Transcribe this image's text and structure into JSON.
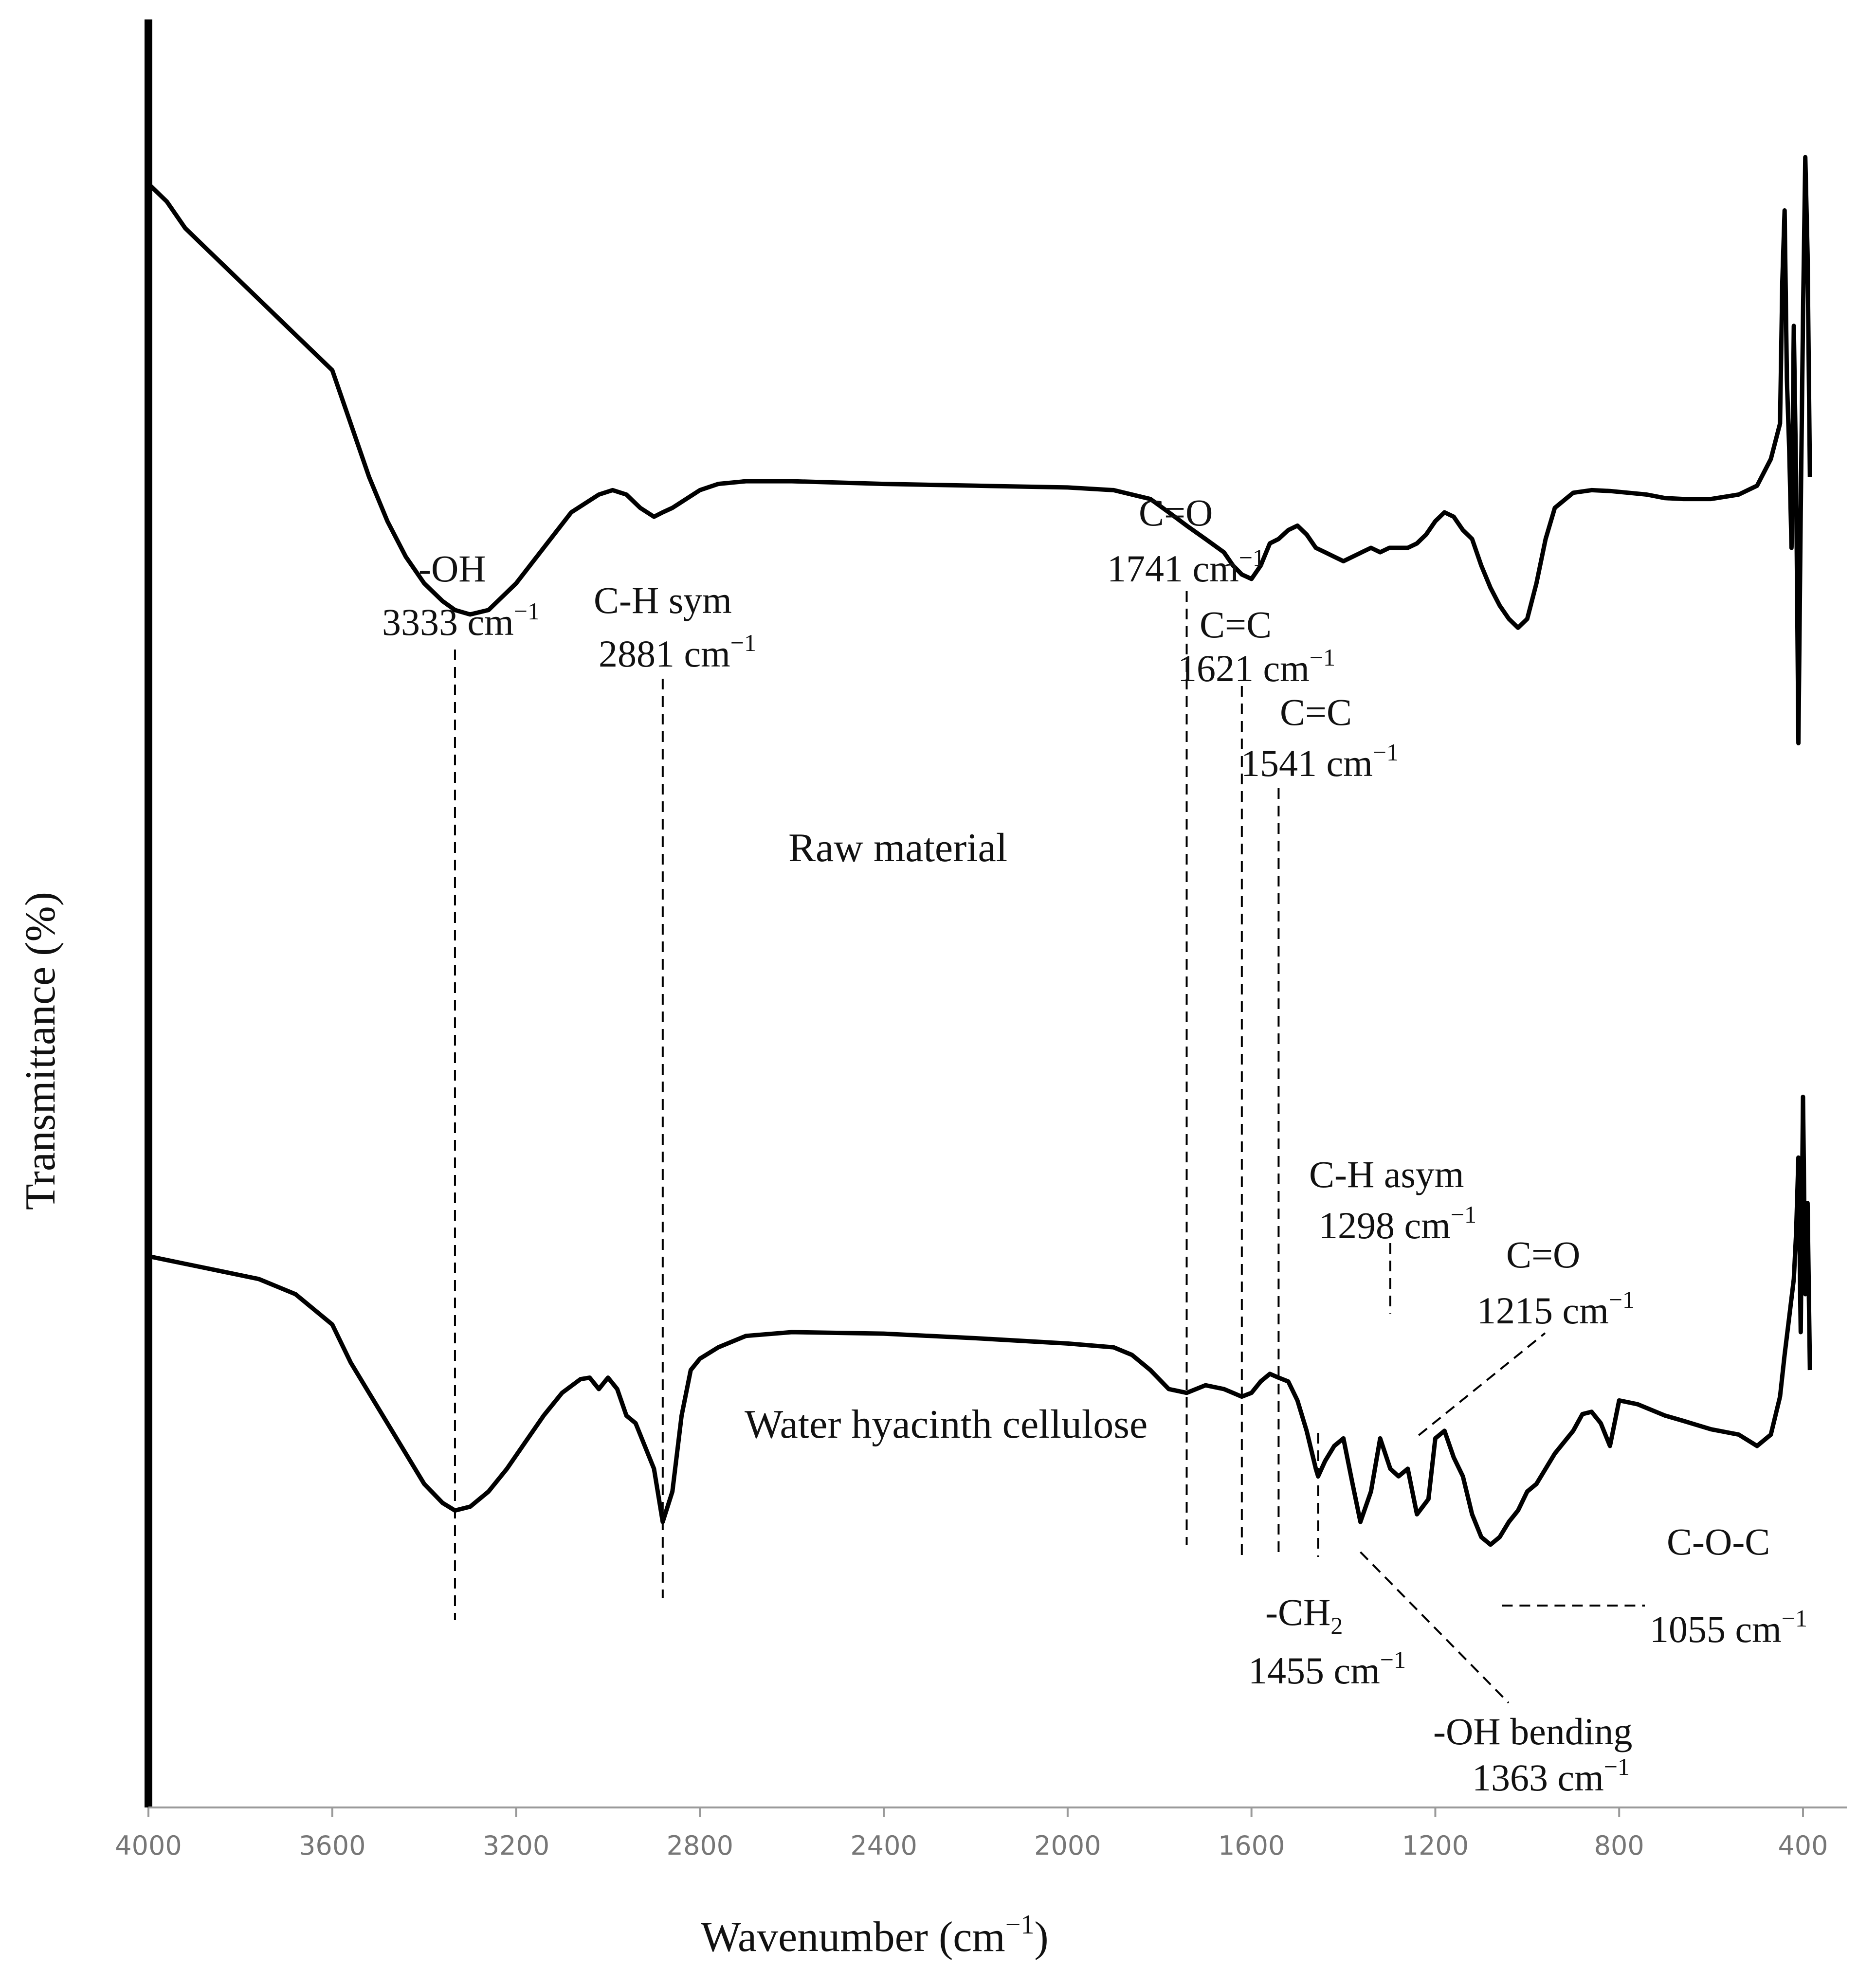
{
  "chart_data": {
    "type": "line",
    "title": "",
    "xlabel": "Wavenumber (cm",
    "xlabel_sup": "−1",
    "xlabel_suffix": ")",
    "ylabel": "Transmittance (%)",
    "xlim": [
      4000,
      300
    ],
    "x_reversed": true,
    "ylim": [
      0,
      100
    ],
    "y_ticks_shown": false,
    "grid": false,
    "x_ticks": [
      4000,
      3600,
      3200,
      2800,
      2400,
      2000,
      1600,
      1200,
      800,
      400
    ],
    "series": [
      {
        "name": "Raw material",
        "x": [
          4000,
          3960,
          3920,
          3880,
          3840,
          3800,
          3760,
          3720,
          3680,
          3640,
          3600,
          3560,
          3520,
          3480,
          3440,
          3400,
          3360,
          3333,
          3300,
          3260,
          3200,
          3140,
          3080,
          3020,
          2990,
          2960,
          2930,
          2900,
          2881,
          2860,
          2830,
          2800,
          2760,
          2700,
          2600,
          2400,
          2200,
          2000,
          1900,
          1820,
          1780,
          1741,
          1700,
          1660,
          1640,
          1621,
          1600,
          1580,
          1560,
          1541,
          1520,
          1500,
          1480,
          1460,
          1440,
          1420,
          1400,
          1380,
          1360,
          1340,
          1320,
          1300,
          1280,
          1260,
          1240,
          1220,
          1200,
          1180,
          1160,
          1140,
          1120,
          1100,
          1080,
          1060,
          1040,
          1020,
          1000,
          980,
          960,
          940,
          900,
          860,
          820,
          780,
          740,
          700,
          660,
          600,
          540,
          500,
          470,
          450,
          445,
          440,
          435,
          430,
          425,
          420,
          415,
          410,
          405,
          400,
          395,
          390,
          385
        ],
        "y": [
          93,
          91,
          88,
          86,
          84,
          82,
          80,
          78,
          76,
          74,
          72,
          66,
          60,
          55,
          51,
          48,
          46,
          45,
          44.5,
          45,
          48,
          52,
          56,
          58,
          58.5,
          58,
          56.5,
          55.5,
          56,
          56.5,
          57.5,
          58.5,
          59.2,
          59.5,
          59.5,
          59.2,
          59,
          58.8,
          58.5,
          57.5,
          56,
          54.5,
          53,
          51.5,
          50,
          49,
          48.5,
          50,
          52.5,
          53,
          54,
          54.5,
          53.5,
          52,
          51.5,
          51,
          50.5,
          51,
          51.5,
          52,
          51.5,
          52,
          52,
          52,
          52.5,
          53.5,
          55,
          56,
          55.5,
          54,
          53,
          50,
          47.5,
          45.5,
          44,
          43,
          44,
          48,
          53,
          56.5,
          58.2,
          58.5,
          58.4,
          58.2,
          58,
          57.6,
          57.5,
          57.5,
          58,
          59,
          62,
          66,
          82,
          90,
          71,
          63,
          52,
          77,
          60,
          30,
          56,
          78,
          96,
          85,
          60
        ]
      },
      {
        "name": "Water hyacinth cellulose",
        "x": [
          4000,
          3960,
          3920,
          3880,
          3840,
          3800,
          3760,
          3720,
          3680,
          3640,
          3600,
          3560,
          3520,
          3480,
          3440,
          3400,
          3360,
          3333,
          3300,
          3260,
          3220,
          3180,
          3140,
          3100,
          3060,
          3040,
          3020,
          3000,
          2980,
          2960,
          2940,
          2920,
          2900,
          2881,
          2860,
          2840,
          2820,
          2800,
          2760,
          2700,
          2600,
          2400,
          2200,
          2000,
          1900,
          1860,
          1820,
          1780,
          1741,
          1700,
          1660,
          1621,
          1600,
          1580,
          1560,
          1541,
          1520,
          1500,
          1480,
          1460,
          1455,
          1440,
          1420,
          1400,
          1380,
          1363,
          1340,
          1320,
          1298,
          1280,
          1260,
          1240,
          1215,
          1200,
          1180,
          1160,
          1140,
          1120,
          1100,
          1080,
          1060,
          1055,
          1040,
          1020,
          1000,
          980,
          960,
          940,
          920,
          900,
          880,
          860,
          840,
          820,
          800,
          760,
          700,
          660,
          600,
          540,
          500,
          470,
          450,
          440,
          430,
          420,
          415,
          410,
          405,
          400,
          395,
          390,
          385
        ],
        "y": [
          55,
          54.5,
          54,
          53.5,
          53,
          52.5,
          52,
          51,
          50,
          48,
          46,
          41,
          37,
          33,
          29,
          25,
          22.5,
          21.5,
          22,
          24,
          27,
          30.5,
          34,
          37,
          38.8,
          39,
          37.5,
          39,
          37.5,
          34,
          33,
          30,
          27,
          20,
          24,
          34,
          40,
          41.5,
          43,
          44.5,
          45,
          44.8,
          44.2,
          43.5,
          43,
          42,
          40,
          37.5,
          37,
          38,
          37.5,
          36.5,
          37,
          38.5,
          39.5,
          39,
          38.5,
          36,
          32,
          27,
          26,
          28,
          30,
          31,
          25,
          20,
          24,
          31,
          27,
          26,
          27,
          21,
          23,
          31,
          32,
          28.5,
          26,
          21,
          18,
          17,
          18,
          18.5,
          20,
          21.5,
          24,
          25,
          27,
          29,
          30.5,
          32,
          34.2,
          34.5,
          33,
          30,
          36,
          35.5,
          34,
          33.3,
          32.2,
          31.5,
          30,
          31.5,
          36.5,
          42,
          47,
          52,
          58,
          68,
          45,
          76,
          50,
          62,
          40
        ]
      }
    ],
    "annotations": [
      {
        "label": "-OH",
        "wavenumber_label": "3333 cm",
        "sup": "−1",
        "x": 3333
      },
      {
        "label": "C-H sym",
        "wavenumber_label": "2881 cm",
        "sup": "−1",
        "x": 2881
      },
      {
        "label": "C=O",
        "wavenumber_label": "1741 cm",
        "sup": "−1",
        "x": 1741
      },
      {
        "label": "C=C",
        "wavenumber_label": "1621 cm",
        "sup": "−1",
        "x": 1621
      },
      {
        "label": "C=C",
        "wavenumber_label": "1541 cm",
        "sup": "−1",
        "x": 1541
      },
      {
        "label": "C-H asym",
        "wavenumber_label": "1298 cm",
        "sup": "−1",
        "x": 1298
      },
      {
        "label": "C=O",
        "wavenumber_label": "1215 cm",
        "sup": "−1",
        "x": 1215
      },
      {
        "label": "-CH",
        "label_sub": "2",
        "wavenumber_label": "1455 cm",
        "sup": "−1",
        "x": 1455
      },
      {
        "label": "-OH bending",
        "wavenumber_label": "1363 cm",
        "sup": "−1",
        "x": 1363
      },
      {
        "label": "C-O-C",
        "wavenumber_label": "1055 cm",
        "sup": "−1",
        "x": 1055
      }
    ]
  }
}
